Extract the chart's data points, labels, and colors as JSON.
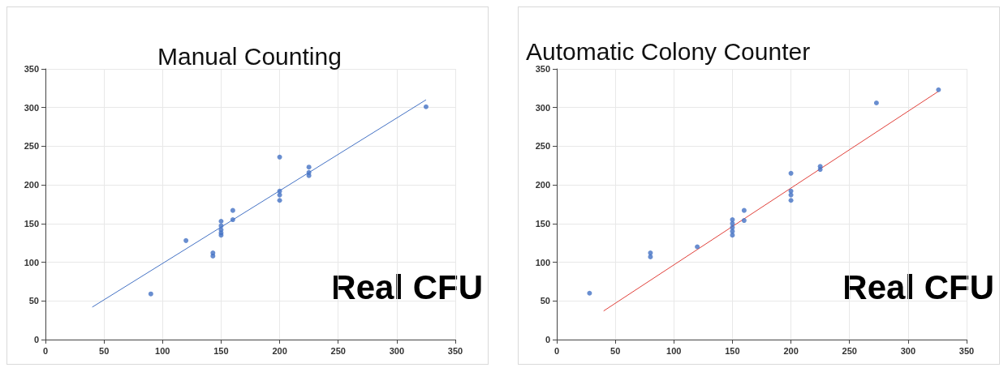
{
  "chart_data": [
    {
      "type": "scatter",
      "title": "Manual Counting",
      "xlabel": "Real CFU",
      "xlim": [
        0,
        350
      ],
      "xticks": [
        0,
        50,
        100,
        150,
        200,
        250,
        300,
        350
      ],
      "ylim": [
        0,
        350
      ],
      "yticks": [
        0,
        50,
        100,
        150,
        200,
        250,
        300,
        350
      ],
      "grid": true,
      "marker": "circle",
      "series": [
        {
          "color": "#4472c4",
          "x": [
            90,
            120,
            143,
            143,
            150,
            150,
            150,
            150,
            150,
            160,
            160,
            200,
            200,
            200,
            200,
            225,
            225,
            225,
            325
          ],
          "values": [
            59,
            128,
            112,
            108,
            153,
            147,
            142,
            138,
            135,
            167,
            155,
            236,
            192,
            187,
            180,
            223,
            216,
            212,
            301
          ]
        },
        {
          "type": "line",
          "marker": "none",
          "color": "#4472c4",
          "x": [
            40,
            325
          ],
          "values": [
            42,
            310
          ]
        }
      ]
    },
    {
      "type": "scatter",
      "title": "Automatic Colony Counter",
      "xlabel": "Real CFU",
      "xlim": [
        0,
        350
      ],
      "xticks": [
        0,
        50,
        100,
        150,
        200,
        250,
        300,
        350
      ],
      "ylim": [
        0,
        350
      ],
      "yticks": [
        0,
        50,
        100,
        150,
        200,
        250,
        300,
        350
      ],
      "grid": true,
      "marker": "circle",
      "series": [
        {
          "color": "#4472c4",
          "x": [
            28,
            80,
            80,
            120,
            150,
            150,
            150,
            150,
            150,
            160,
            160,
            200,
            200,
            200,
            200,
            225,
            225,
            273,
            326
          ],
          "values": [
            60,
            112,
            107,
            120,
            155,
            150,
            145,
            140,
            135,
            167,
            154,
            215,
            192,
            187,
            180,
            224,
            220,
            306,
            323
          ]
        },
        {
          "type": "line",
          "marker": "none",
          "color": "#e0403a",
          "x": [
            40,
            326
          ],
          "values": [
            37,
            321
          ]
        }
      ]
    }
  ]
}
